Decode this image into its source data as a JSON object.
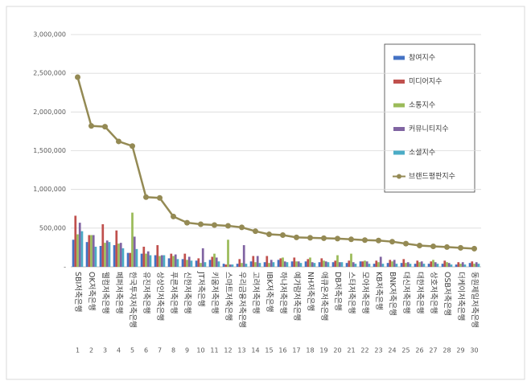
{
  "chart_data": {
    "type": "bar-line",
    "categories": [
      "SBI저축은행",
      "OK저축은행",
      "웰컴저축은행",
      "페퍼저축은행",
      "한국투자저축은행",
      "유진저축은행",
      "상상인저축은행",
      "푸른저축은행",
      "신한저축은행",
      "JT저축은행",
      "키움저축은행",
      "스마트저축은행",
      "우리금융저축은행",
      "고려저축은행",
      "IBK저축은행",
      "하나저축은행",
      "예가람저축은행",
      "NH저축은행",
      "애큐온저축은행",
      "DB저축은행",
      "스타저축은행",
      "모아저축은행",
      "KB저축은행",
      "BNK저축은행",
      "대신저축은행",
      "대한저축은행",
      "상호저축은행",
      "OSB저축은행",
      "더케이저축은행",
      "동원제일저축은행"
    ],
    "ranks": [
      1,
      2,
      3,
      4,
      5,
      6,
      7,
      8,
      9,
      10,
      11,
      12,
      13,
      14,
      15,
      16,
      17,
      18,
      19,
      20,
      21,
      22,
      23,
      24,
      25,
      26,
      27,
      28,
      29,
      30
    ],
    "ylim": [
      0,
      3000000
    ],
    "yticks": [
      {
        "value": 0,
        "label": "-"
      },
      {
        "value": 500000,
        "label": "500,000"
      },
      {
        "value": 1000000,
        "label": "1,000,000"
      },
      {
        "value": 1500000,
        "label": "1,500,000"
      },
      {
        "value": 2000000,
        "label": "2,000,000"
      },
      {
        "value": 2500000,
        "label": "2,500,000"
      },
      {
        "value": 3000000,
        "label": "3,000,000"
      }
    ],
    "grid": true,
    "series": [
      {
        "name": "참여지수",
        "kind": "bar",
        "color": "#4472c4",
        "values": [
          350000,
          320000,
          270000,
          280000,
          180000,
          170000,
          150000,
          110000,
          100000,
          80000,
          90000,
          40000,
          40000,
          70000,
          60000,
          90000,
          70000,
          70000,
          60000,
          60000,
          50000,
          70000,
          40000,
          50000,
          50000,
          40000,
          40000,
          40000,
          30000,
          50000
        ]
      },
      {
        "name": "미디어지수",
        "kind": "bar",
        "color": "#c0504d",
        "values": [
          660000,
          410000,
          550000,
          470000,
          180000,
          260000,
          280000,
          170000,
          170000,
          110000,
          130000,
          30000,
          100000,
          140000,
          140000,
          110000,
          120000,
          100000,
          110000,
          80000,
          80000,
          70000,
          80000,
          90000,
          100000,
          80000,
          70000,
          80000,
          60000,
          70000
        ]
      },
      {
        "name": "소통지수",
        "kind": "bar",
        "color": "#9bbb59",
        "values": [
          420000,
          410000,
          310000,
          300000,
          700000,
          170000,
          140000,
          140000,
          90000,
          50000,
          170000,
          350000,
          50000,
          60000,
          50000,
          120000,
          70000,
          120000,
          80000,
          150000,
          170000,
          80000,
          60000,
          70000,
          50000,
          60000,
          90000,
          60000,
          40000,
          40000
        ]
      },
      {
        "name": "커뮤니티지수",
        "kind": "bar",
        "color": "#8064a2",
        "values": [
          570000,
          410000,
          340000,
          310000,
          390000,
          200000,
          150000,
          160000,
          130000,
          240000,
          120000,
          30000,
          280000,
          140000,
          90000,
          70000,
          70000,
          60000,
          70000,
          60000,
          60000,
          70000,
          130000,
          90000,
          60000,
          70000,
          60000,
          50000,
          60000,
          60000
        ]
      },
      {
        "name": "소셜지수",
        "kind": "bar",
        "color": "#4bacc6",
        "values": [
          460000,
          260000,
          320000,
          240000,
          230000,
          150000,
          150000,
          100000,
          80000,
          60000,
          70000,
          30000,
          40000,
          50000,
          60000,
          60000,
          50000,
          50000,
          60000,
          60000,
          40000,
          40000,
          40000,
          40000,
          40000,
          40000,
          40000,
          30000,
          30000,
          40000
        ]
      },
      {
        "name": "브랜드평판지수",
        "kind": "line",
        "color": "#948a54",
        "values": [
          2450000,
          1820000,
          1810000,
          1620000,
          1560000,
          900000,
          890000,
          650000,
          570000,
          550000,
          540000,
          530000,
          510000,
          460000,
          420000,
          410000,
          380000,
          375000,
          370000,
          365000,
          355000,
          345000,
          340000,
          325000,
          300000,
          275000,
          265000,
          255000,
          245000,
          235000
        ]
      }
    ]
  }
}
